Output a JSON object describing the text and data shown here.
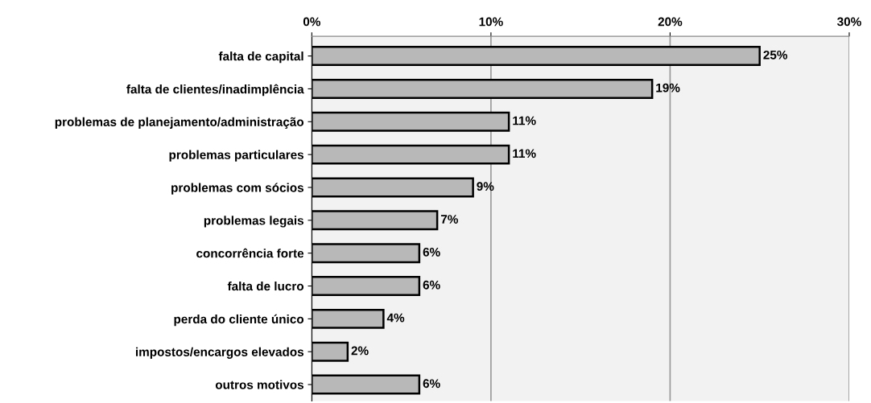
{
  "chart_data": {
    "type": "bar",
    "orientation": "horizontal",
    "categories": [
      "falta de capital",
      "falta de clientes/inadimplência",
      "problemas de planejamento/administração",
      "problemas particulares",
      "problemas com sócios",
      "problemas legais",
      "concorrência forte",
      "falta de lucro",
      "perda do cliente único",
      "impostos/encargos elevados",
      "outros motivos"
    ],
    "values": [
      25,
      19,
      11,
      11,
      9,
      7,
      6,
      6,
      4,
      2,
      6
    ],
    "value_labels": [
      "25%",
      "19%",
      "11%",
      "11%",
      "9%",
      "7%",
      "6%",
      "6%",
      "4%",
      "2%",
      "6%"
    ],
    "color": "#b8b8b8",
    "xlim": [
      0,
      30
    ],
    "xticks": [
      {
        "value": 0,
        "label": "0%"
      },
      {
        "value": 10,
        "label": "10%"
      },
      {
        "value": 20,
        "label": "20%"
      },
      {
        "value": 30,
        "label": "30%"
      }
    ],
    "grid": "x"
  }
}
